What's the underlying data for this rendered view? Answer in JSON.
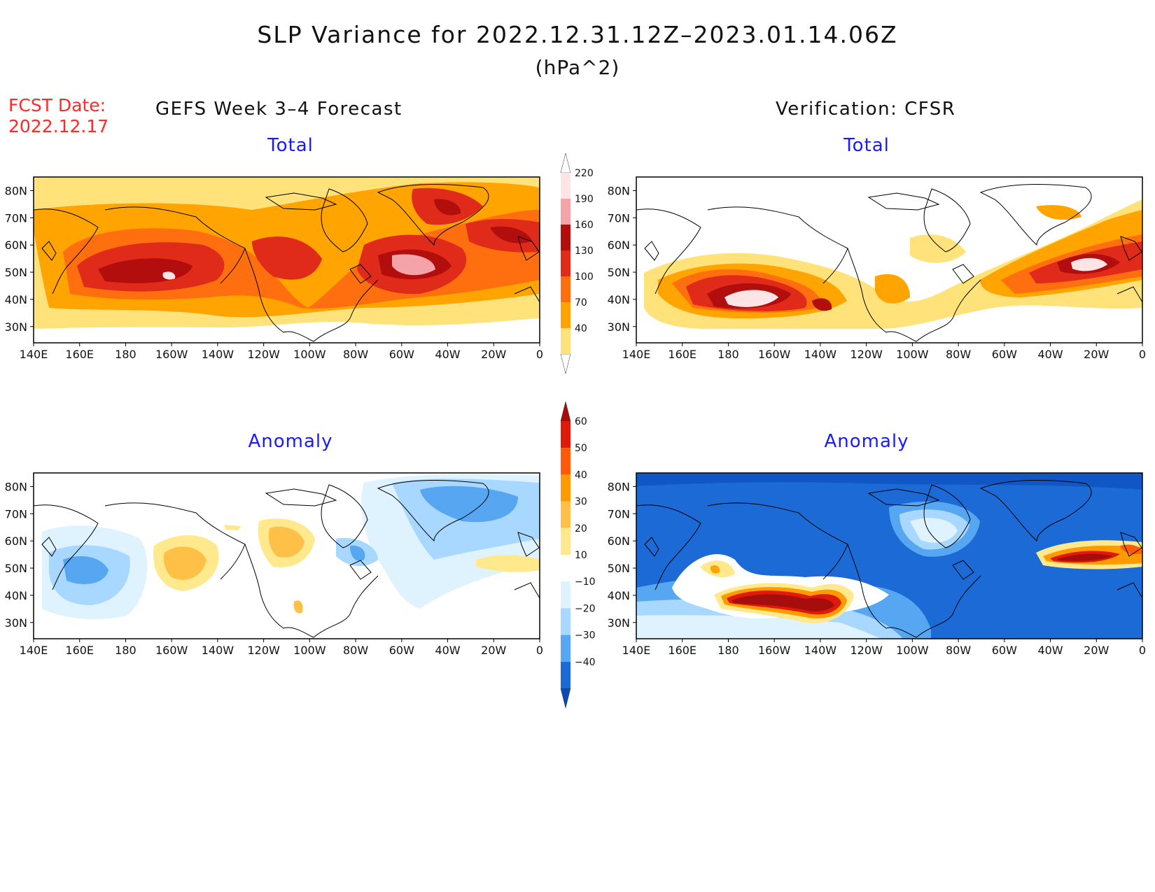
{
  "title": "SLP Variance for 2022.12.31.12Z–2023.01.14.06Z",
  "units": "(hPa^2)",
  "fcst_label": "FCST Date:",
  "fcst_date": "2022.12.17",
  "left_column_title": "GEFS Week 3–4 Forecast",
  "right_column_title": "Verification: CFSR",
  "panels": [
    {
      "id": "fcst-total",
      "subtitle": "Total"
    },
    {
      "id": "ver-total",
      "subtitle": "Total"
    },
    {
      "id": "fcst-anom",
      "subtitle": "Anomaly"
    },
    {
      "id": "ver-anom",
      "subtitle": "Anomaly"
    }
  ],
  "lat_ticks": [
    "80N",
    "70N",
    "60N",
    "50N",
    "40N",
    "30N"
  ],
  "lon_ticks": [
    "140E",
    "160E",
    "180",
    "160W",
    "140W",
    "120W",
    "100W",
    "80W",
    "60W",
    "40W",
    "20W",
    "0"
  ],
  "colorbars": {
    "total": {
      "labels": [
        "220",
        "190",
        "160",
        "130",
        "100",
        "70",
        "40"
      ],
      "colors": [
        "#ffe4e6",
        "#f4a4a8",
        "#b30e0e",
        "#e02a1a",
        "#ff6f0f",
        "#ffa400",
        "#ffe37a"
      ]
    },
    "anomaly": {
      "labels": [
        "60",
        "50",
        "40",
        "30",
        "20",
        "10",
        "−10",
        "−20",
        "−30",
        "−40"
      ],
      "colors": [
        "#a60e0e",
        "#e01a0a",
        "#ff5a0a",
        "#ff9a00",
        "#ffc048",
        "#ffe98c",
        "#ffffff",
        "#dff3ff",
        "#a8d8ff",
        "#56a6f2",
        "#1b6ad6",
        "#0a4ab8"
      ]
    }
  }
}
